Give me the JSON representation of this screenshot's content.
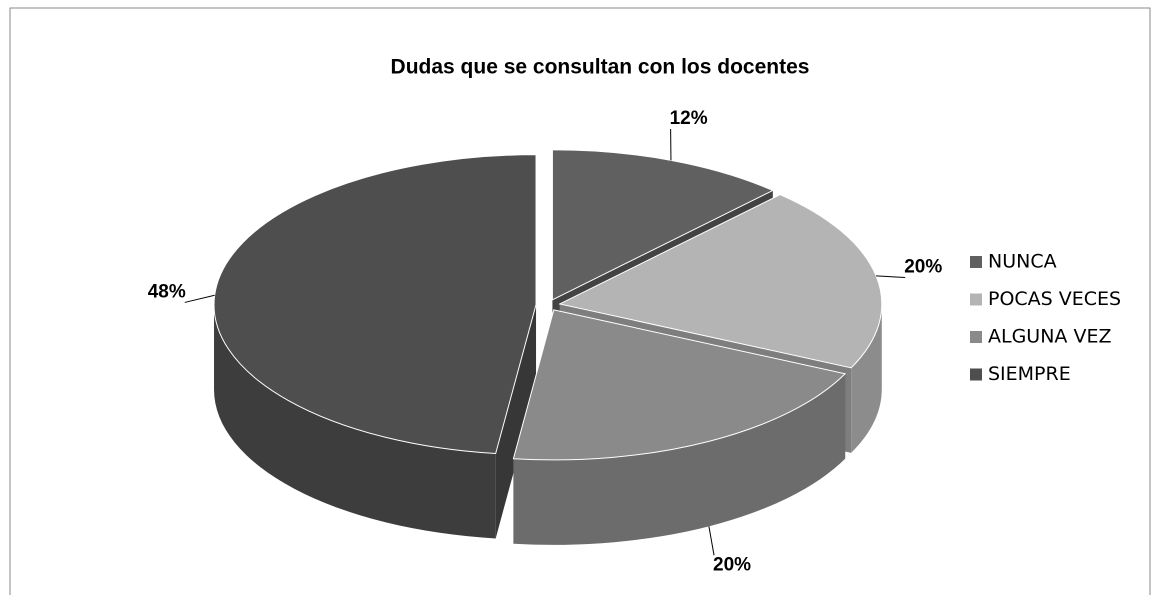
{
  "chart_data": {
    "type": "pie",
    "title": "Dudas que se consultan con los docentes",
    "categories": [
      "NUNCA",
      "POCAS VECES",
      "ALGUNA VEZ",
      "SIEMPRE"
    ],
    "values": [
      12,
      20,
      20,
      48
    ],
    "value_labels": [
      "12%",
      "20%",
      "20%",
      "48%"
    ],
    "colors": [
      "#606060",
      "#b4b4b4",
      "#8a8a8a",
      "#4e4e4e"
    ],
    "legend": "right",
    "three_d": true,
    "exploded": true
  }
}
